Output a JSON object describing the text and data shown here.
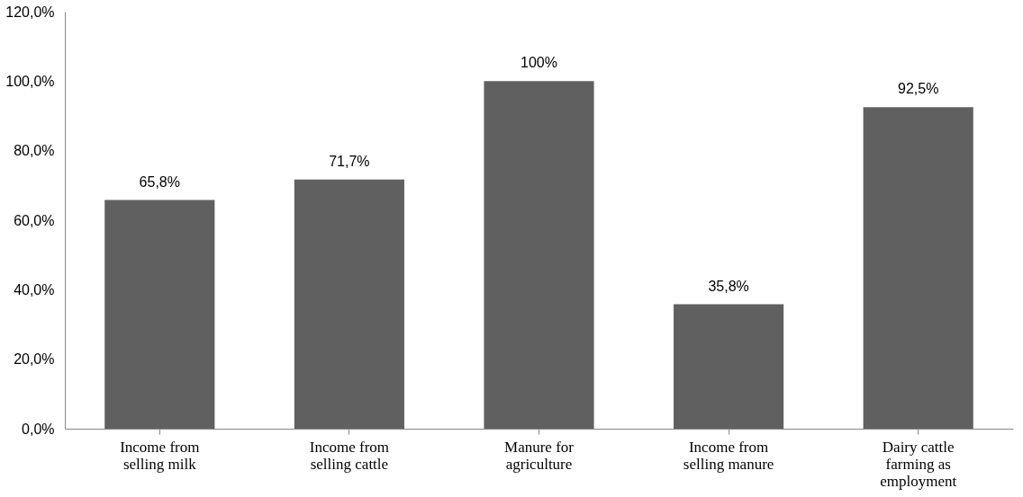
{
  "chart_data": {
    "type": "bar",
    "categories": [
      "Income from selling milk",
      "Income from selling cattle",
      "Manure for agriculture",
      "Income from selling manure",
      "Dairy cattle farming as employment"
    ],
    "values": [
      65.8,
      71.7,
      100,
      35.8,
      92.5
    ],
    "value_labels": [
      "65,8%",
      "71,7%",
      "100%",
      "35,8%",
      "92,5%"
    ],
    "color": "#606060",
    "ylim": [
      0,
      120
    ],
    "yticks": [
      {
        "value": 0,
        "label": "0,0%"
      },
      {
        "value": 20,
        "label": "20,0%"
      },
      {
        "value": 40,
        "label": "40,0%"
      },
      {
        "value": 60,
        "label": "60,0%"
      },
      {
        "value": 80,
        "label": "80,0%"
      },
      {
        "value": 100,
        "label": "100,0%"
      },
      {
        "value": 120,
        "label": "120,0%"
      }
    ],
    "grid": false
  }
}
